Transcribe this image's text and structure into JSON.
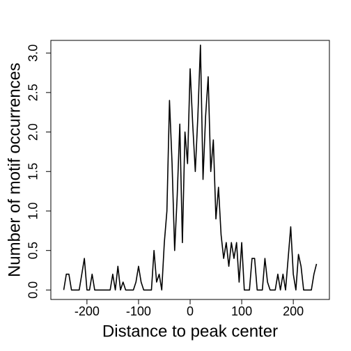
{
  "chart_data": {
    "type": "line",
    "xlabel": "Distance to peak center",
    "ylabel": "Number of motif occurrences",
    "x": [
      -245,
      -240,
      -235,
      -230,
      -225,
      -220,
      -215,
      -210,
      -205,
      -200,
      -195,
      -190,
      -185,
      -180,
      -175,
      -170,
      -165,
      -160,
      -155,
      -150,
      -145,
      -140,
      -135,
      -130,
      -125,
      -120,
      -115,
      -110,
      -105,
      -100,
      -95,
      -90,
      -85,
      -80,
      -75,
      -70,
      -65,
      -60,
      -55,
      -50,
      -45,
      -40,
      -35,
      -30,
      -25,
      -20,
      -15,
      -10,
      -5,
      0,
      5,
      10,
      15,
      20,
      25,
      30,
      35,
      40,
      45,
      50,
      55,
      60,
      65,
      70,
      75,
      80,
      85,
      90,
      95,
      100,
      105,
      110,
      115,
      120,
      125,
      130,
      135,
      140,
      145,
      150,
      155,
      160,
      165,
      170,
      175,
      180,
      185,
      190,
      195,
      200,
      205,
      210,
      215,
      220,
      225,
      230,
      235,
      240,
      245
    ],
    "series": [
      {
        "color": "#000000",
        "values": [
          0,
          0.2,
          0.2,
          0,
          0,
          0,
          0,
          0.2,
          0.4,
          0,
          0,
          0.2,
          0,
          0,
          0,
          0,
          0,
          0,
          0,
          0.2,
          0,
          0.3,
          0,
          0.1,
          0,
          0,
          0,
          0,
          0.1,
          0.3,
          0.1,
          0,
          0,
          0,
          0,
          0.5,
          0.1,
          0.2,
          0,
          0.6,
          1.0,
          2.4,
          1.6,
          0.5,
          1.2,
          2.1,
          0.6,
          2.0,
          1.6,
          2.8,
          2.1,
          1.5,
          2.2,
          3.1,
          1.4,
          2.2,
          2.7,
          1.5,
          1.9,
          0.9,
          1.3,
          0.7,
          0.4,
          0.6,
          0.3,
          0.6,
          0.4,
          0.6,
          0.1,
          0.6,
          0,
          0,
          0,
          0.4,
          0.4,
          0,
          0,
          0,
          0.4,
          0.1,
          0,
          0,
          0,
          0.2,
          0,
          0.2,
          0,
          0.4,
          0.8,
          0.2,
          0,
          0.45,
          0.3,
          0,
          0,
          0,
          0,
          0.2,
          0.33
        ]
      }
    ],
    "xlim": [
      -270,
      270
    ],
    "ylim": [
      -0.12,
      3.16
    ],
    "xticks": [
      -200,
      -100,
      0,
      100,
      200
    ],
    "yticks": [
      {
        "value": 0,
        "label": "0.0"
      },
      {
        "value": 0.5,
        "label": "0.5"
      },
      {
        "value": 1,
        "label": "1.0"
      },
      {
        "value": 1.5,
        "label": "1.5"
      },
      {
        "value": 2,
        "label": "2.0"
      },
      {
        "value": 2.5,
        "label": "2.5"
      },
      {
        "value": 3,
        "label": "3.0"
      }
    ]
  }
}
